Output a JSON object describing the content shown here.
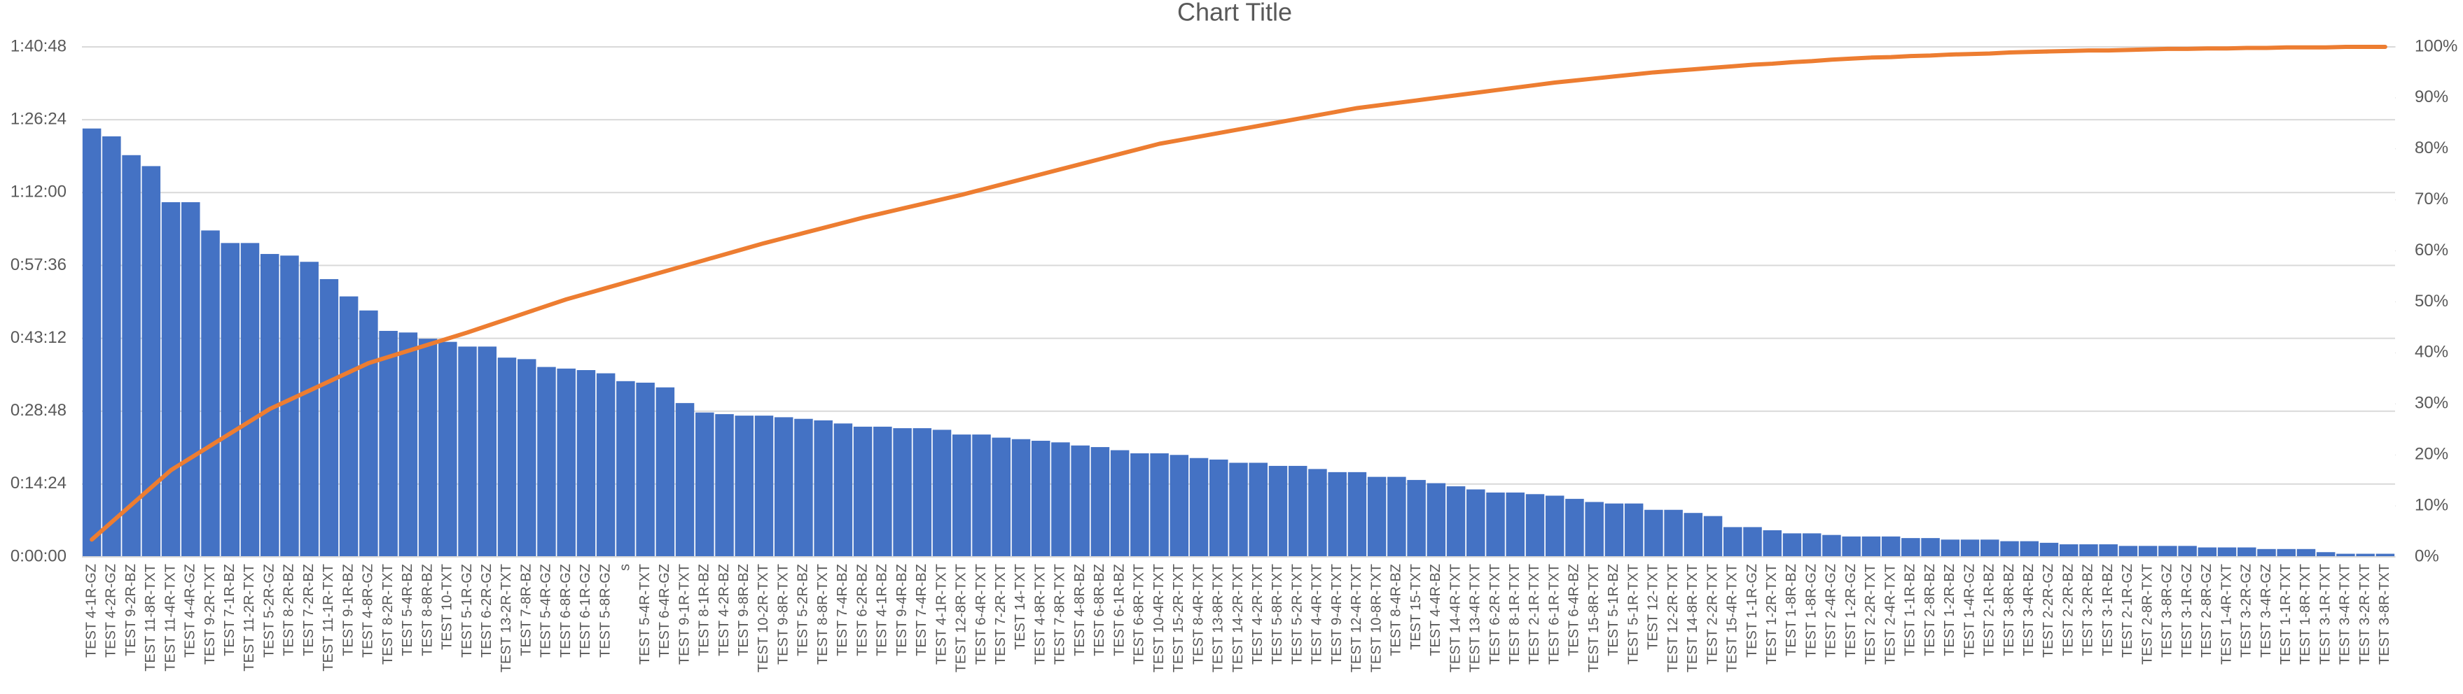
{
  "chart_data": {
    "type": "bar",
    "title": "Chart Title",
    "categories": [
      "TEST 4-1R-GZ",
      "TEST 4-2R-GZ",
      "TEST 9-2R-BZ",
      "TEST 11-8R-TXT",
      "TEST 11-4R-TXT",
      "TEST 4-4R-GZ",
      "TEST 9-2R-TXT",
      "TEST 7-1R-BZ",
      "TEST 11-2R-TXT",
      "TEST 5-2R-GZ",
      "TEST 8-2R-BZ",
      "TEST 7-2R-BZ",
      "TEST 11-1R-TXT",
      "TEST 9-1R-BZ",
      "TEST 4-8R-GZ",
      "TEST 8-2R-TXT",
      "TEST 5-4R-BZ",
      "TEST 8-8R-BZ",
      "TEST 10-TXT",
      "TEST 5-1R-GZ",
      "TEST 6-2R-GZ",
      "TEST 13-2R-TXT",
      "TEST 7-8R-BZ",
      "TEST 5-4R-GZ",
      "TEST 6-8R-GZ",
      "TEST 6-1R-GZ",
      "TEST 5-8R-GZ",
      "s",
      "TEST 5-4R-TXT",
      "TEST 6-4R-GZ",
      "TEST 9-1R-TXT",
      "TEST 8-1R-BZ",
      "TEST 4-2R-BZ",
      "TEST 9-8R-BZ",
      "TEST 10-2R-TXT",
      "TEST 9-8R-TXT",
      "TEST 5-2R-BZ",
      "TEST 8-8R-TXT",
      "TEST 7-4R-BZ",
      "TEST 6-2R-BZ",
      "TEST 4-1R-BZ",
      "TEST 9-4R-BZ",
      "TEST 7-4R-BZ",
      "TEST 4-1R-TXT",
      "TEST 12-8R-TXT",
      "TEST 6-4R-TXT",
      "TEST 7-2R-TXT",
      "TEST 14-TXT",
      "TEST 4-8R-TXT",
      "TEST 7-8R-TXT",
      "TEST 4-8R-BZ",
      "TEST 6-8R-BZ",
      "TEST 6-1R-BZ",
      "TEST 6-8R-TXT",
      "TEST 10-4R-TXT",
      "TEST 15-2R-TXT",
      "TEST 8-4R-TXT",
      "TEST 13-8R-TXT",
      "TEST 14-2R-TXT",
      "TEST 4-2R-TXT",
      "TEST 5-8R-TXT",
      "TEST 5-2R-TXT",
      "TEST 4-4R-TXT",
      "TEST 9-4R-TXT",
      "TEST 12-4R-TXT",
      "TEST 10-8R-TXT",
      "TEST 8-4R-BZ",
      "TEST 15-TXT",
      "TEST 4-4R-BZ",
      "TEST 14-4R-TXT",
      "TEST 13-4R-TXT",
      "TEST 6-2R-TXT",
      "TEST 8-1R-TXT",
      "TEST 2-1R-TXT",
      "TEST 6-1R-TXT",
      "TEST 6-4R-BZ",
      "TEST 15-8R-TXT",
      "TEST 5-1R-BZ",
      "TEST 5-1R-TXT",
      "TEST 12-TXT",
      "TEST 12-2R-TXT",
      "TEST 14-8R-TXT",
      "TEST 2-2R-TXT",
      "TEST 15-4R-TXT",
      "TEST 1-1R-GZ",
      "TEST 1-2R-TXT",
      "TEST 1-8R-BZ",
      "TEST 1-8R-GZ",
      "TEST 2-4R-GZ",
      "TEST 1-2R-GZ",
      "TEST 2-2R-TXT",
      "TEST 2-4R-TXT",
      "TEST 1-1R-BZ",
      "TEST 2-8R-BZ",
      "TEST 1-2R-BZ",
      "TEST 1-4R-GZ",
      "TEST 2-1R-BZ",
      "TEST 3-8R-BZ",
      "TEST 3-4R-BZ",
      "TEST 2-2R-GZ",
      "TEST 2-2R-BZ",
      "TEST 3-2R-BZ",
      "TEST 3-1R-BZ",
      "TEST 2-1R-GZ",
      "TEST 2-8R-TXT",
      "TEST 3-8R-GZ",
      "TEST 3-1R-GZ",
      "TEST 2-8R-GZ",
      "TEST 1-4R-TXT",
      "TEST 3-2R-GZ",
      "TEST 3-4R-GZ",
      "TEST 1-1R-TXT",
      "TEST 1-8R-TXT",
      "TEST 3-1R-TXT",
      "TEST 3-4R-TXT",
      "TEST 3-2R-TXT",
      "TEST 3-8R-TXT"
    ],
    "series": [
      {
        "color": "#4472c4",
        "values": [
          5080,
          4987,
          4764,
          4634,
          4206,
          4206,
          3871,
          3722,
          3722,
          3592,
          3573,
          3499,
          3294,
          3089,
          2922,
          2680,
          2661,
          2587,
          2550,
          2494,
          2494,
          2363,
          2345,
          2252,
          2233,
          2215,
          2177,
          2084,
          2066,
          2010,
          1824,
          1712,
          1693,
          1675,
          1675,
          1656,
          1637,
          1619,
          1582,
          1544,
          1544,
          1526,
          1526,
          1507,
          1451,
          1451,
          1414,
          1396,
          1377,
          1358,
          1321,
          1302,
          1265,
          1228,
          1228,
          1209,
          1172,
          1154,
          1116,
          1116,
          1079,
          1079,
          1042,
          1005,
          1005,
          949,
          949,
          912,
          874,
          837,
          800,
          763,
          763,
          744,
          726,
          688,
          651,
          633,
          633,
          558,
          558,
          521,
          484,
          353,
          353,
          316,
          279,
          279,
          260,
          242,
          242,
          242,
          223,
          223,
          205,
          205,
          205,
          186,
          186,
          167,
          149,
          149,
          149,
          130,
          130,
          130,
          130,
          112,
          112,
          112,
          93,
          93,
          93,
          56,
          37,
          37,
          37
        ]
      },
      {
        "type": "line",
        "axis": "y2",
        "color": "#ed7d31",
        "values": [
          3.4,
          6.8,
          10.2,
          13.6,
          17,
          19.4,
          21.8,
          24.2,
          26.6,
          29,
          30.8,
          32.6,
          34.4,
          36.2,
          38,
          39.2,
          40.4,
          41.6,
          42.8,
          44,
          45.3,
          46.6,
          47.9,
          49.2,
          50.5,
          51.6,
          52.7,
          53.8,
          54.9,
          56,
          57.1,
          58.2,
          59.3,
          60.4,
          61.5,
          62.5,
          63.5,
          64.5,
          65.5,
          66.5,
          67.4,
          68.3,
          69.2,
          70.1,
          71,
          72,
          73,
          74,
          75,
          76,
          77,
          78,
          79,
          80,
          81,
          81.7,
          82.4,
          83.1,
          83.8,
          84.5,
          85.2,
          85.9,
          86.6,
          87.3,
          88,
          88.5,
          89,
          89.5,
          90,
          90.5,
          91,
          91.5,
          92,
          92.5,
          93,
          93.4,
          93.8,
          94.2,
          94.6,
          95,
          95.3,
          95.6,
          95.9,
          96.2,
          96.5,
          96.7,
          97,
          97.2,
          97.5,
          97.7,
          97.9,
          98,
          98.2,
          98.3,
          98.5,
          98.6,
          98.7,
          98.9,
          99,
          99.1,
          99.2,
          99.3,
          99.3,
          99.4,
          99.5,
          99.6,
          99.6,
          99.7,
          99.7,
          99.8,
          99.8,
          99.9,
          99.9,
          99.9,
          100,
          100,
          100
        ]
      }
    ],
    "ylim": [
      0,
      6048
    ],
    "yticks": [
      {
        "value": 0,
        "label": "0:00:00"
      },
      {
        "value": 864,
        "label": "0:14:24"
      },
      {
        "value": 1728,
        "label": "0:28:48"
      },
      {
        "value": 2592,
        "label": "0:43:12"
      },
      {
        "value": 3456,
        "label": "0:57:36"
      },
      {
        "value": 4320,
        "label": "1:12:00"
      },
      {
        "value": 5184,
        "label": "1:26:24"
      },
      {
        "value": 6048,
        "label": "1:40:48"
      }
    ],
    "y2lim": [
      0,
      100
    ],
    "y2ticks": [
      {
        "value": 0,
        "label": "0%"
      },
      {
        "value": 10,
        "label": "10%"
      },
      {
        "value": 20,
        "label": "20%"
      },
      {
        "value": 30,
        "label": "30%"
      },
      {
        "value": 40,
        "label": "40%"
      },
      {
        "value": 50,
        "label": "50%"
      },
      {
        "value": 60,
        "label": "60%"
      },
      {
        "value": 70,
        "label": "70%"
      },
      {
        "value": 80,
        "label": "80%"
      },
      {
        "value": 90,
        "label": "90%"
      },
      {
        "value": 100,
        "label": "100%"
      }
    ],
    "grid": true
  }
}
